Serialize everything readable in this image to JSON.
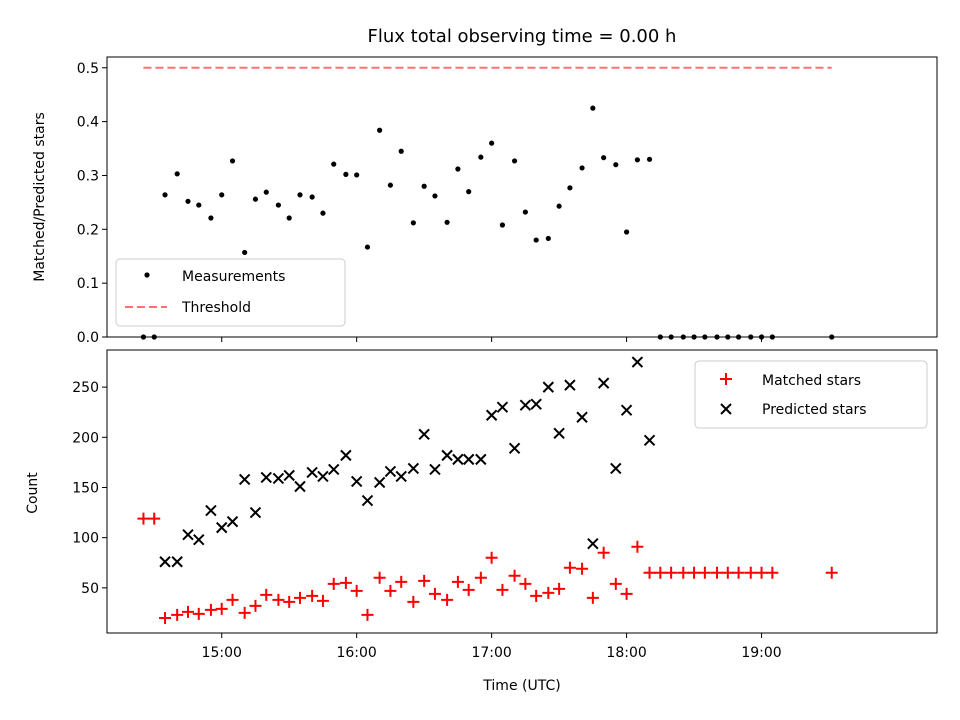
{
  "chart_data": [
    {
      "type": "scatter",
      "title": "Flux total observing time = 0.00 h",
      "ylabel": "Matched/Predicted stars",
      "xlabel": "",
      "xlim_hours": [
        14.15,
        20.3
      ],
      "ylim": [
        0,
        0.52
      ],
      "yticks": [
        "0.0",
        "0.1",
        "0.2",
        "0.3",
        "0.4",
        "0.5"
      ],
      "ytick_values": [
        0,
        0.1,
        0.2,
        0.3,
        0.4,
        0.5
      ],
      "grid": false,
      "legend": {
        "position": "lower-left",
        "entries": [
          "Measurements",
          "Threshold"
        ]
      },
      "threshold": {
        "name": "Threshold",
        "value": 0.5,
        "x": [
          14.42,
          19.52
        ],
        "color": "#ff7070",
        "style": "dashed"
      },
      "series": [
        {
          "name": "Measurements",
          "marker": "dot",
          "color": "#000000",
          "points": [
            [
              14.42,
              0.0
            ],
            [
              14.5,
              0.0
            ],
            [
              14.58,
              0.264
            ],
            [
              14.67,
              0.303
            ],
            [
              14.75,
              0.252
            ],
            [
              14.83,
              0.245
            ],
            [
              14.92,
              0.221
            ],
            [
              15.0,
              0.264
            ],
            [
              15.08,
              0.327
            ],
            [
              15.17,
              0.157
            ],
            [
              15.25,
              0.256
            ],
            [
              15.33,
              0.269
            ],
            [
              15.42,
              0.245
            ],
            [
              15.5,
              0.221
            ],
            [
              15.58,
              0.264
            ],
            [
              15.67,
              0.26
            ],
            [
              15.75,
              0.23
            ],
            [
              15.83,
              0.321
            ],
            [
              15.92,
              0.302
            ],
            [
              16.0,
              0.301
            ],
            [
              16.08,
              0.167
            ],
            [
              16.17,
              0.384
            ],
            [
              16.25,
              0.282
            ],
            [
              16.33,
              0.345
            ],
            [
              16.42,
              0.212
            ],
            [
              16.5,
              0.28
            ],
            [
              16.58,
              0.262
            ],
            [
              16.67,
              0.213
            ],
            [
              16.75,
              0.312
            ],
            [
              16.83,
              0.27
            ],
            [
              16.92,
              0.334
            ],
            [
              17.0,
              0.36
            ],
            [
              17.08,
              0.208
            ],
            [
              17.17,
              0.327
            ],
            [
              17.25,
              0.232
            ],
            [
              17.33,
              0.18
            ],
            [
              17.42,
              0.183
            ],
            [
              17.5,
              0.243
            ],
            [
              17.58,
              0.277
            ],
            [
              17.67,
              0.314
            ],
            [
              17.75,
              0.425
            ],
            [
              17.83,
              0.333
            ],
            [
              17.92,
              0.32
            ],
            [
              18.0,
              0.195
            ],
            [
              18.08,
              0.329
            ],
            [
              18.17,
              0.33
            ],
            [
              18.25,
              0.0
            ],
            [
              18.33,
              0.0
            ],
            [
              18.42,
              0.0
            ],
            [
              18.5,
              0.0
            ],
            [
              18.58,
              0.0
            ],
            [
              18.67,
              0.0
            ],
            [
              18.75,
              0.0
            ],
            [
              18.83,
              0.0
            ],
            [
              18.92,
              0.0
            ],
            [
              19.0,
              0.0
            ],
            [
              19.08,
              0.0
            ],
            [
              19.52,
              0.0
            ]
          ]
        }
      ]
    },
    {
      "type": "scatter",
      "title": "",
      "ylabel": "Count",
      "xlabel": "Time (UTC)",
      "xlim_hours": [
        14.15,
        20.3
      ],
      "xticks": [
        "15:00",
        "16:00",
        "17:00",
        "18:00",
        "19:00"
      ],
      "xtick_hours": [
        15,
        16,
        17,
        18,
        19
      ],
      "ylim": [
        5,
        287
      ],
      "yticks": [
        "50",
        "100",
        "150",
        "200",
        "250"
      ],
      "ytick_values": [
        50,
        100,
        150,
        200,
        250
      ],
      "grid": false,
      "legend": {
        "position": "upper-right",
        "entries": [
          "Matched stars",
          "Predicted stars"
        ]
      },
      "series": [
        {
          "name": "Matched stars",
          "marker": "plus",
          "color": "#ff0000",
          "points": [
            [
              14.42,
              119
            ],
            [
              14.5,
              119
            ],
            [
              14.58,
              20
            ],
            [
              14.67,
              23
            ],
            [
              14.75,
              26
            ],
            [
              14.83,
              24
            ],
            [
              14.92,
              28
            ],
            [
              15.0,
              29
            ],
            [
              15.08,
              38
            ],
            [
              15.17,
              25
            ],
            [
              15.25,
              32
            ],
            [
              15.33,
              43
            ],
            [
              15.42,
              38
            ],
            [
              15.5,
              36
            ],
            [
              15.58,
              40
            ],
            [
              15.67,
              42
            ],
            [
              15.75,
              37
            ],
            [
              15.83,
              54
            ],
            [
              15.92,
              55
            ],
            [
              16.0,
              47
            ],
            [
              16.08,
              23
            ],
            [
              16.17,
              60
            ],
            [
              16.25,
              47
            ],
            [
              16.33,
              56
            ],
            [
              16.42,
              36
            ],
            [
              16.5,
              57
            ],
            [
              16.58,
              44
            ],
            [
              16.67,
              38
            ],
            [
              16.75,
              56
            ],
            [
              16.83,
              48
            ],
            [
              16.92,
              60
            ],
            [
              17.0,
              80
            ],
            [
              17.08,
              48
            ],
            [
              17.17,
              62
            ],
            [
              17.25,
              54
            ],
            [
              17.33,
              42
            ],
            [
              17.42,
              45
            ],
            [
              17.5,
              49
            ],
            [
              17.58,
              70
            ],
            [
              17.67,
              69
            ],
            [
              17.75,
              40
            ],
            [
              17.83,
              85
            ],
            [
              17.92,
              54
            ],
            [
              18.0,
              44
            ],
            [
              18.08,
              91
            ],
            [
              18.17,
              65
            ],
            [
              18.25,
              65
            ],
            [
              18.33,
              65
            ],
            [
              18.42,
              65
            ],
            [
              18.5,
              65
            ],
            [
              18.58,
              65
            ],
            [
              18.67,
              65
            ],
            [
              18.75,
              65
            ],
            [
              18.83,
              65
            ],
            [
              18.92,
              65
            ],
            [
              19.0,
              65
            ],
            [
              19.08,
              65
            ],
            [
              19.52,
              65
            ]
          ]
        },
        {
          "name": "Predicted stars",
          "marker": "cross",
          "color": "#000000",
          "points": [
            [
              14.58,
              76
            ],
            [
              14.67,
              76
            ],
            [
              14.75,
              103
            ],
            [
              14.83,
              98
            ],
            [
              14.92,
              127
            ],
            [
              15.0,
              110
            ],
            [
              15.08,
              116
            ],
            [
              15.17,
              158
            ],
            [
              15.25,
              125
            ],
            [
              15.33,
              160
            ],
            [
              15.42,
              159
            ],
            [
              15.5,
              162
            ],
            [
              15.58,
              151
            ],
            [
              15.67,
              165
            ],
            [
              15.75,
              161
            ],
            [
              15.83,
              168
            ],
            [
              15.92,
              182
            ],
            [
              16.0,
              156
            ],
            [
              16.08,
              137
            ],
            [
              16.17,
              155
            ],
            [
              16.25,
              166
            ],
            [
              16.33,
              161
            ],
            [
              16.42,
              169
            ],
            [
              16.5,
              203
            ],
            [
              16.58,
              168
            ],
            [
              16.67,
              182
            ],
            [
              16.75,
              178
            ],
            [
              16.83,
              178
            ],
            [
              16.92,
              178
            ],
            [
              17.0,
              222
            ],
            [
              17.08,
              230
            ],
            [
              17.17,
              189
            ],
            [
              17.25,
              232
            ],
            [
              17.33,
              233
            ],
            [
              17.42,
              250
            ],
            [
              17.5,
              204
            ],
            [
              17.58,
              252
            ],
            [
              17.67,
              220
            ],
            [
              17.75,
              94
            ],
            [
              17.83,
              254
            ],
            [
              17.92,
              169
            ],
            [
              18.0,
              227
            ],
            [
              18.08,
              275
            ],
            [
              18.17,
              197
            ]
          ]
        }
      ]
    }
  ]
}
